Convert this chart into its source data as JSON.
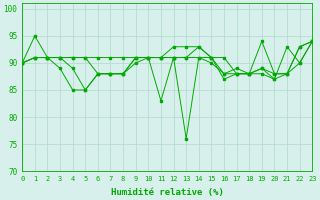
{
  "xlabel": "Humidité relative (%)",
  "xlim": [
    0,
    23
  ],
  "ylim": [
    70,
    101
  ],
  "yticks": [
    70,
    75,
    80,
    85,
    90,
    95,
    100
  ],
  "xticks": [
    0,
    1,
    2,
    3,
    4,
    5,
    6,
    7,
    8,
    9,
    10,
    11,
    12,
    13,
    14,
    15,
    16,
    17,
    18,
    19,
    20,
    21,
    22,
    23
  ],
  "bg_color": "#d8f0ec",
  "grid_color": "#b0d8cc",
  "line_color": "#00aa00",
  "lines": [
    [
      90,
      95,
      91,
      89,
      85,
      85,
      88,
      88,
      88,
      91,
      91,
      83,
      91,
      76,
      91,
      90,
      88,
      89,
      88,
      88,
      87,
      93,
      90,
      94
    ],
    [
      90,
      91,
      91,
      91,
      89,
      85,
      88,
      88,
      88,
      90,
      91,
      91,
      91,
      91,
      91,
      91,
      91,
      88,
      88,
      89,
      87,
      88,
      93,
      94
    ],
    [
      90,
      91,
      91,
      91,
      91,
      91,
      88,
      88,
      88,
      91,
      91,
      91,
      91,
      91,
      93,
      91,
      87,
      88,
      88,
      89,
      88,
      88,
      90,
      94
    ],
    [
      90,
      91,
      91,
      91,
      91,
      91,
      91,
      91,
      91,
      91,
      91,
      91,
      93,
      93,
      93,
      91,
      88,
      88,
      88,
      94,
      88,
      88,
      93,
      94
    ]
  ]
}
